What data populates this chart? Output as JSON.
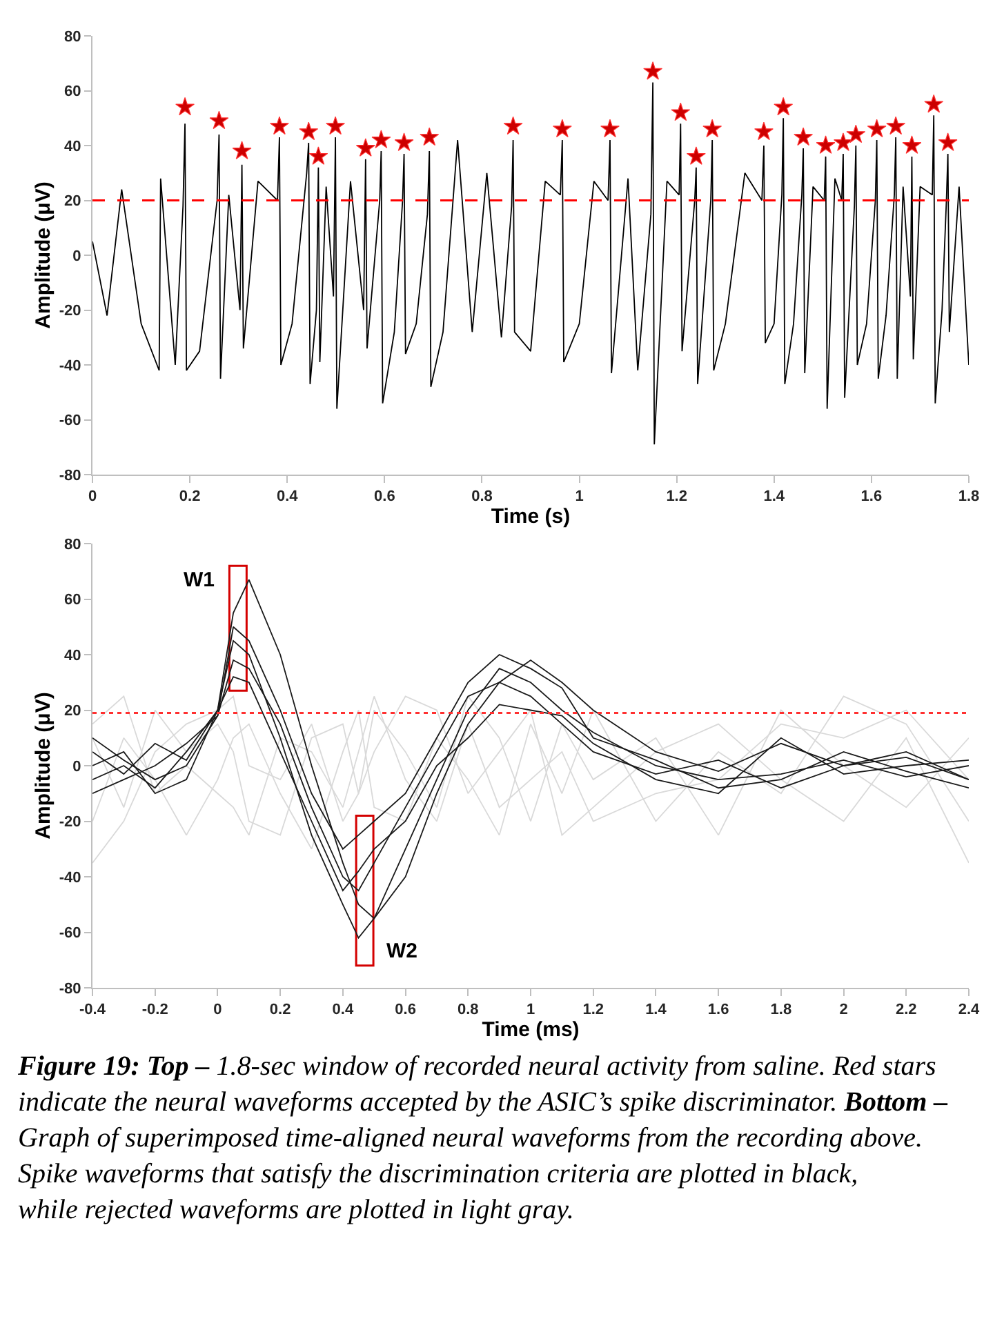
{
  "chart_data": [
    {
      "type": "line",
      "xlabel": "Time (s)",
      "ylabel": "Amplitude (μV)",
      "xlim": [
        0,
        1.8
      ],
      "xticks": [
        0,
        0.2,
        0.4,
        0.6,
        0.8,
        1,
        1.2,
        1.4,
        1.6,
        1.8
      ],
      "ylim": [
        -80,
        80
      ],
      "yticks": [
        -80,
        -60,
        -40,
        -20,
        0,
        20,
        40,
        60,
        80
      ],
      "ref_lines": [
        {
          "axis": "y",
          "value": 20,
          "color": "#ff0000",
          "line_style": "dashed"
        }
      ],
      "series": [
        {
          "color": "#000000",
          "x": [
            0,
            0.03,
            0.06,
            0.1,
            0.137,
            0.14,
            0.17,
            0.186,
            0.19,
            0.193,
            0.22,
            0.256,
            0.26,
            0.263,
            0.28,
            0.303,
            0.307,
            0.31,
            0.34,
            0.38,
            0.384,
            0.387,
            0.41,
            0.44,
            0.444,
            0.447,
            0.46,
            0.464,
            0.467,
            0.48,
            0.495,
            0.499,
            0.502,
            0.53,
            0.557,
            0.561,
            0.564,
            0.59,
            0.593,
            0.596,
            0.62,
            0.637,
            0.64,
            0.643,
            0.665,
            0.688,
            0.692,
            0.695,
            0.72,
            0.75,
            0.78,
            0.81,
            0.84,
            0.861,
            0.864,
            0.867,
            0.9,
            0.93,
            0.961,
            0.965,
            0.968,
            1.0,
            1.03,
            1.059,
            1.063,
            1.066,
            1.1,
            1.12,
            1.147,
            1.151,
            1.154,
            1.18,
            1.205,
            1.208,
            1.211,
            1.237,
            1.24,
            1.243,
            1.27,
            1.273,
            1.276,
            1.3,
            1.34,
            1.375,
            1.379,
            1.382,
            1.4,
            1.416,
            1.419,
            1.422,
            1.44,
            1.457,
            1.46,
            1.463,
            1.48,
            1.503,
            1.506,
            1.509,
            1.525,
            1.539,
            1.542,
            1.545,
            1.565,
            1.568,
            1.571,
            1.59,
            1.608,
            1.611,
            1.614,
            1.63,
            1.647,
            1.65,
            1.653,
            1.665,
            1.68,
            1.683,
            1.686,
            1.7,
            1.725,
            1.728,
            1.731,
            1.745,
            1.754,
            1.757,
            1.76,
            1.78,
            1.8
          ],
          "values": [
            5,
            -22,
            24,
            -25,
            -42,
            28,
            -40,
            18,
            48,
            -42,
            -35,
            20,
            44,
            -45,
            22,
            -20,
            33,
            -34,
            27,
            20,
            43,
            -40,
            -25,
            30,
            41,
            -47,
            -20,
            32,
            -39,
            25,
            -15,
            43,
            -56,
            27,
            -20,
            35,
            -34,
            20,
            38,
            -54,
            -28,
            20,
            37,
            -36,
            -25,
            15,
            38,
            -48,
            -28,
            42,
            -28,
            30,
            -30,
            18,
            42,
            -28,
            -35,
            27,
            22,
            42,
            -39,
            -25,
            27,
            20,
            42,
            -43,
            28,
            -42,
            15,
            63,
            -69,
            27,
            22,
            48,
            -35,
            20,
            32,
            -47,
            20,
            42,
            -42,
            -25,
            30,
            20,
            40,
            -32,
            -25,
            22,
            50,
            -47,
            -25,
            22,
            39,
            -43,
            25,
            20,
            36,
            -56,
            28,
            20,
            37,
            -52,
            18,
            40,
            -40,
            -25,
            20,
            42,
            -45,
            -22,
            22,
            43,
            -45,
            25,
            -15,
            36,
            -38,
            25,
            22,
            51,
            -54,
            -20,
            20,
            37,
            -28,
            25,
            -40
          ]
        },
        {
          "type": "scatter",
          "marker": "star",
          "color": "#cc0000",
          "x": [
            0.19,
            0.26,
            0.307,
            0.384,
            0.444,
            0.464,
            0.499,
            0.561,
            0.593,
            0.64,
            0.692,
            0.864,
            0.965,
            1.063,
            1.151,
            1.208,
            1.24,
            1.273,
            1.379,
            1.419,
            1.46,
            1.506,
            1.542,
            1.568,
            1.611,
            1.65,
            1.683,
            1.728,
            1.757
          ],
          "values": [
            54,
            49,
            38,
            47,
            45,
            36,
            47,
            39,
            42,
            41,
            43,
            47,
            46,
            46,
            67,
            52,
            36,
            46,
            45,
            54,
            43,
            40,
            41,
            44,
            46,
            47,
            40,
            55,
            41
          ]
        }
      ]
    },
    {
      "type": "line",
      "xlabel": "Time (ms)",
      "ylabel": "Amplitude (μV)",
      "xlim": [
        -0.4,
        2.4
      ],
      "xticks": [
        -0.4,
        -0.2,
        0,
        0.2,
        0.4,
        0.6,
        0.8,
        1,
        1.2,
        1.4,
        1.6,
        1.8,
        2,
        2.2,
        2.4
      ],
      "ylim": [
        -80,
        80
      ],
      "yticks": [
        -80,
        -60,
        -40,
        -20,
        0,
        20,
        40,
        60,
        80
      ],
      "x": [
        -0.4,
        -0.3,
        -0.2,
        -0.1,
        0,
        0.05,
        0.1,
        0.2,
        0.3,
        0.4,
        0.45,
        0.5,
        0.6,
        0.7,
        0.8,
        0.9,
        1.0,
        1.1,
        1.2,
        1.4,
        1.6,
        1.8,
        2.0,
        2.2,
        2.4
      ],
      "ref_lines": [
        {
          "axis": "y",
          "value": 19,
          "color": "#ff3030",
          "line_style": "dotted"
        }
      ],
      "series": [
        {
          "color": "#d9d9d9",
          "values": [
            10,
            -15,
            20,
            5,
            15,
            5,
            -20,
            -25,
            10,
            15,
            -10,
            20,
            5,
            -15,
            25,
            10,
            -20,
            15,
            -5,
            10,
            -25,
            20,
            0,
            -15,
            10
          ]
        },
        {
          "color": "#d9d9d9",
          "values": [
            -20,
            10,
            -5,
            -25,
            -5,
            10,
            15,
            -10,
            -30,
            5,
            20,
            -15,
            -20,
            10,
            -5,
            -25,
            15,
            -10,
            20,
            -20,
            5,
            -10,
            25,
            15,
            -20
          ]
        },
        {
          "color": "#d9d9d9",
          "values": [
            -35,
            -20,
            5,
            15,
            20,
            25,
            0,
            -5,
            15,
            -20,
            -10,
            5,
            25,
            20,
            -10,
            5,
            20,
            -25,
            -15,
            5,
            15,
            -5,
            -20,
            10,
            -35
          ]
        },
        {
          "color": "#d9d9d9",
          "values": [
            15,
            25,
            -10,
            0,
            -10,
            -15,
            -25,
            10,
            5,
            -15,
            5,
            25,
            -5,
            -20,
            15,
            -15,
            -5,
            5,
            -20,
            -10,
            -5,
            15,
            10,
            20,
            -5
          ]
        },
        {
          "color": "#1a1a1a",
          "values": [
            5,
            -3,
            8,
            2,
            20,
            55,
            67,
            40,
            0,
            -35,
            -50,
            -55,
            -40,
            -10,
            15,
            30,
            38,
            30,
            20,
            5,
            -2,
            8,
            0,
            3,
            -5
          ]
        },
        {
          "color": "#1a1a1a",
          "values": [
            -5,
            0,
            -8,
            5,
            20,
            45,
            40,
            10,
            -25,
            -50,
            -62,
            -55,
            -30,
            -5,
            20,
            35,
            30,
            20,
            12,
            0,
            -5,
            -3,
            2,
            -4,
            0
          ]
        },
        {
          "color": "#1a1a1a",
          "values": [
            10,
            2,
            -5,
            0,
            18,
            38,
            35,
            15,
            -15,
            -40,
            -45,
            -35,
            -15,
            5,
            25,
            30,
            25,
            15,
            5,
            -3,
            2,
            -8,
            0,
            5,
            -5
          ]
        },
        {
          "color": "#1a1a1a",
          "values": [
            0,
            5,
            -10,
            -5,
            20,
            32,
            30,
            5,
            -20,
            -45,
            -38,
            -30,
            -20,
            0,
            10,
            22,
            20,
            18,
            8,
            -5,
            -10,
            10,
            -3,
            0,
            2
          ]
        },
        {
          "color": "#1a1a1a",
          "values": [
            -10,
            -5,
            0,
            8,
            18,
            50,
            45,
            20,
            -10,
            -30,
            -25,
            -20,
            -10,
            10,
            30,
            40,
            35,
            28,
            10,
            2,
            -8,
            -5,
            5,
            -2,
            -8
          ]
        },
        {
          "type": "bar",
          "color": "#d40000",
          "x": [
            0.065,
            0.47
          ],
          "base": [
            27,
            -72
          ],
          "values": [
            45,
            54
          ]
        }
      ],
      "annotations": [
        {
          "text": "W1",
          "x": 0.065,
          "y": 72
        },
        {
          "text": "W2",
          "x": 0.47,
          "y": -72
        },
        "Figure 19: Top –",
        " 1.8-sec window of recorded neural activity from saline. Red stars indicate the neural waveforms accepted by the ASIC’s spike discriminator.",
        " Bottom –",
        " Graph of superimposed time-aligned neural waveforms from the recording above. Spike waveforms that satisfy the discrimination criteria are plotted in black, while rejected waveforms are plotted in light gray."
      ]
    }
  ]
}
